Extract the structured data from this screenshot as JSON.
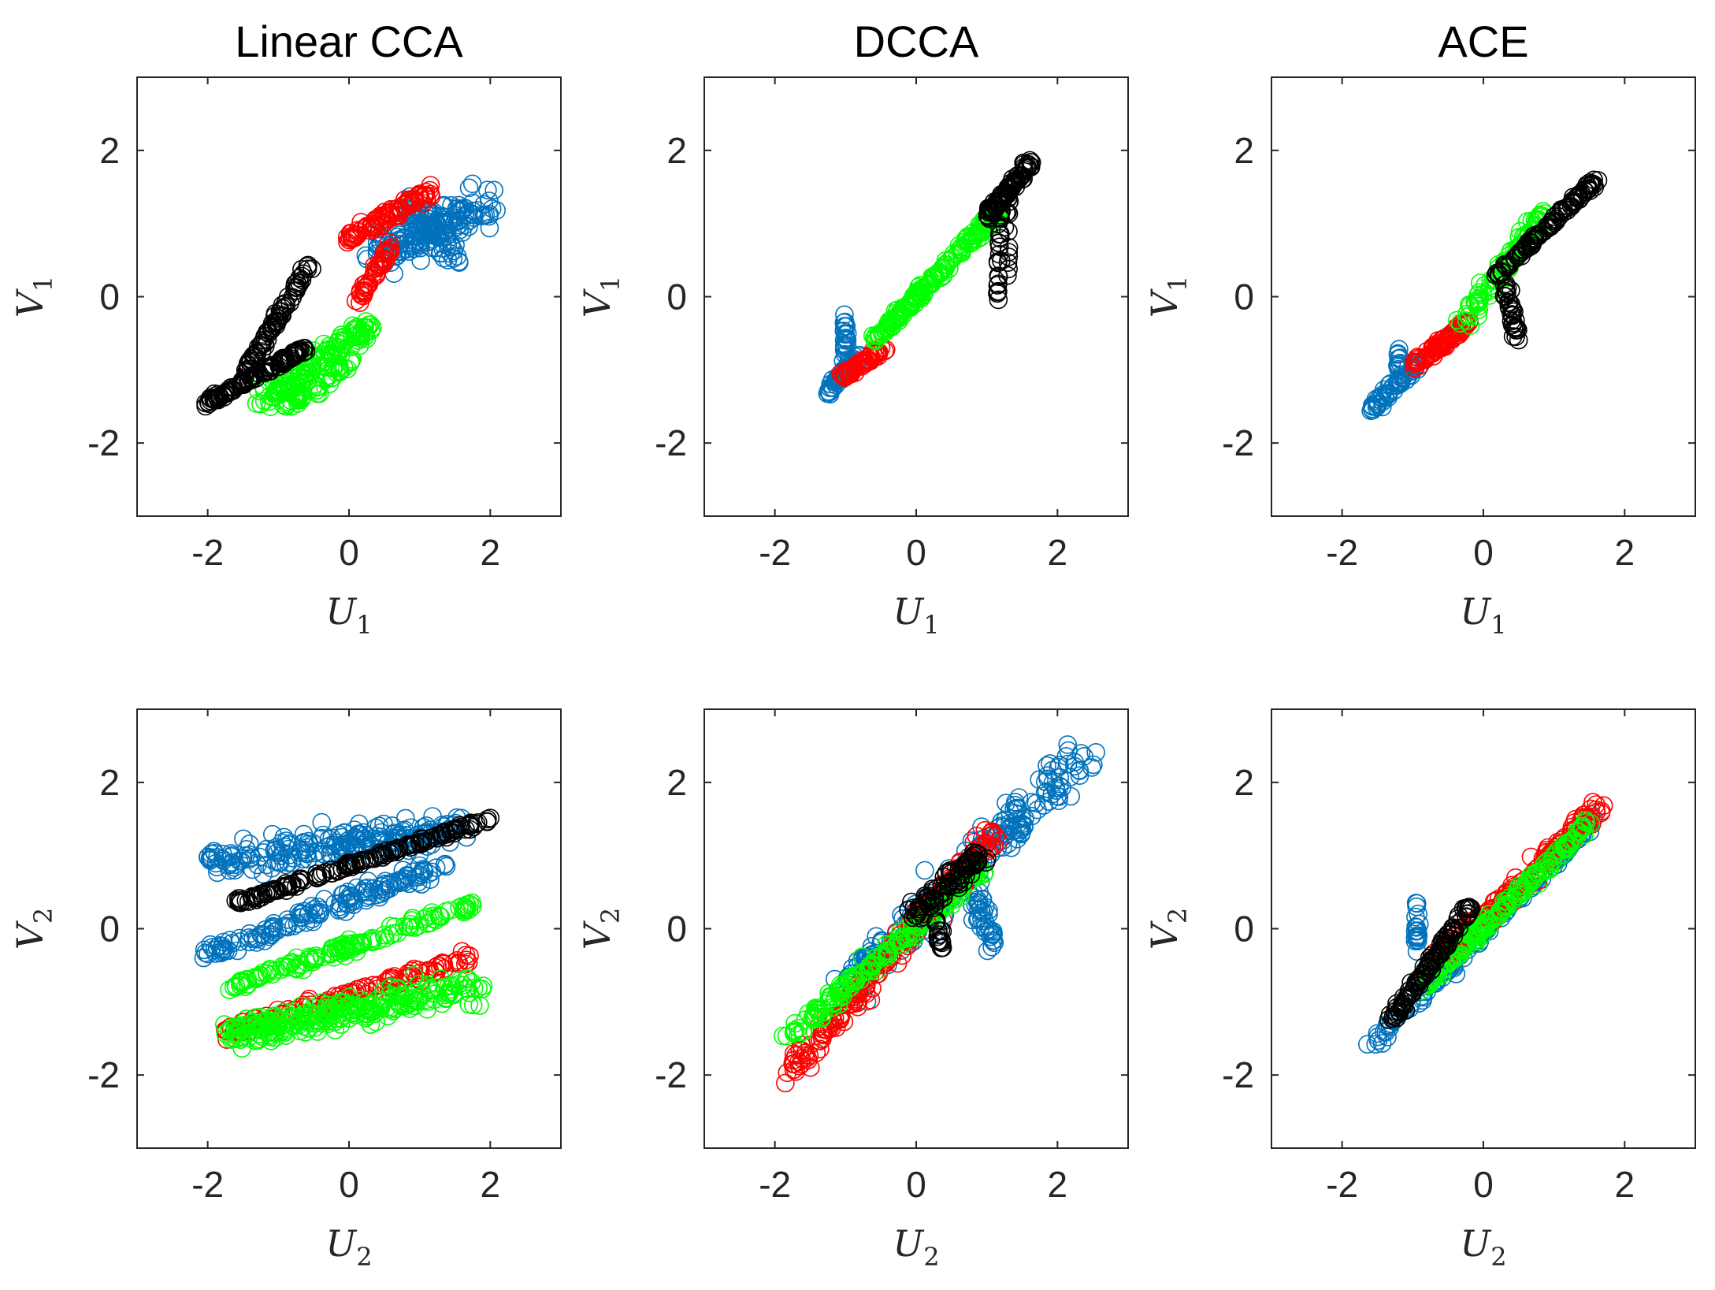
{
  "figure": {
    "column_titles": [
      "Linear CCA",
      "DCCA",
      "ACE"
    ],
    "row_axes": [
      {
        "xlabel": "U",
        "xsub": "1",
        "ylabel": "V",
        "ysub": "1"
      },
      {
        "xlabel": "U",
        "xsub": "2",
        "ylabel": "V",
        "ysub": "2"
      }
    ],
    "xticks": [
      -2,
      0,
      2
    ],
    "yticks": [
      -2,
      0,
      2
    ],
    "xlim": [
      -3,
      3
    ],
    "ylim": [
      -3,
      3
    ]
  },
  "series_colors": {
    "blue": "#0072BD",
    "red": "#FF0000",
    "green": "#00FF00",
    "black": "#000000"
  },
  "chart_data": [
    {
      "type": "scatter",
      "title": "Linear CCA",
      "xlabel": "U_1",
      "ylabel": "V_1",
      "xlim": [
        -3,
        3
      ],
      "ylim": [
        -3,
        3
      ],
      "series": [
        {
          "name": "blue",
          "color": "blue",
          "segments": [
            {
              "from": [
                0.4,
                0.6
              ],
              "to": [
                2.0,
                1.3
              ],
              "spread": 0.28,
              "n": 150
            },
            {
              "from": [
                0.8,
                1.3
              ],
              "to": [
                1.5,
                0.5
              ],
              "spread": 0.18,
              "n": 60
            }
          ]
        },
        {
          "name": "red",
          "color": "red",
          "segments": [
            {
              "from": [
                0.0,
                0.8
              ],
              "to": [
                1.2,
                1.45
              ],
              "spread": 0.1,
              "n": 90
            },
            {
              "from": [
                0.1,
                -0.1
              ],
              "to": [
                0.6,
                0.7
              ],
              "spread": 0.05,
              "n": 50
            }
          ]
        },
        {
          "name": "green",
          "color": "green",
          "segments": [
            {
              "from": [
                -1.2,
                -1.4
              ],
              "to": [
                0.3,
                -0.4
              ],
              "spread": 0.15,
              "n": 130
            },
            {
              "from": [
                -0.9,
                -1.5
              ],
              "to": [
                0.0,
                -0.9
              ],
              "spread": 0.1,
              "n": 50
            }
          ]
        },
        {
          "name": "black",
          "color": "black",
          "segments": [
            {
              "from": [
                -2.0,
                -1.45
              ],
              "to": [
                -0.6,
                -0.7
              ],
              "spread": 0.06,
              "n": 110
            },
            {
              "from": [
                -1.5,
                -1.1
              ],
              "to": [
                -0.55,
                0.45
              ],
              "spread": 0.05,
              "n": 80
            }
          ]
        }
      ]
    },
    {
      "type": "scatter",
      "title": "DCCA",
      "xlabel": "U_1",
      "ylabel": "V_1",
      "xlim": [
        -3,
        3
      ],
      "ylim": [
        -3,
        3
      ],
      "series": [
        {
          "name": "blue",
          "color": "blue",
          "segments": [
            {
              "from": [
                -1.3,
                -1.35
              ],
              "to": [
                -0.8,
                -0.8
              ],
              "spread": 0.06,
              "n": 45
            },
            {
              "from": [
                -1.0,
                -1.0
              ],
              "to": [
                -1.0,
                -0.2
              ],
              "spread": 0.04,
              "n": 25
            }
          ]
        },
        {
          "name": "red",
          "color": "red",
          "segments": [
            {
              "from": [
                -1.05,
                -1.1
              ],
              "to": [
                -0.45,
                -0.7
              ],
              "spread": 0.06,
              "n": 60
            }
          ]
        },
        {
          "name": "green",
          "color": "green",
          "segments": [
            {
              "from": [
                -0.6,
                -0.6
              ],
              "to": [
                1.2,
                1.2
              ],
              "spread": 0.07,
              "n": 170
            }
          ]
        },
        {
          "name": "black",
          "color": "black",
          "segments": [
            {
              "from": [
                1.0,
                1.1
              ],
              "to": [
                1.65,
                1.85
              ],
              "spread": 0.07,
              "n": 80
            },
            {
              "from": [
                1.2,
                1.4
              ],
              "to": [
                1.15,
                -0.15
              ],
              "spread": 0.03,
              "n": 28
            },
            {
              "from": [
                1.3,
                1.4
              ],
              "to": [
                1.3,
                0.2
              ],
              "spread": 0.03,
              "n": 15
            }
          ]
        }
      ]
    },
    {
      "type": "scatter",
      "title": "ACE",
      "xlabel": "U_1",
      "ylabel": "V_1",
      "xlim": [
        -3,
        3
      ],
      "ylim": [
        -3,
        3
      ],
      "series": [
        {
          "name": "blue",
          "color": "blue",
          "segments": [
            {
              "from": [
                -1.6,
                -1.55
              ],
              "to": [
                -0.9,
                -0.9
              ],
              "spread": 0.06,
              "n": 55
            },
            {
              "from": [
                -1.2,
                -1.0
              ],
              "to": [
                -1.2,
                -0.7
              ],
              "spread": 0.03,
              "n": 12
            }
          ]
        },
        {
          "name": "red",
          "color": "red",
          "segments": [
            {
              "from": [
                -1.0,
                -0.95
              ],
              "to": [
                -0.2,
                -0.35
              ],
              "spread": 0.08,
              "n": 80
            }
          ]
        },
        {
          "name": "green",
          "color": "green",
          "segments": [
            {
              "from": [
                -0.3,
                -0.35
              ],
              "to": [
                0.9,
                1.2
              ],
              "spread": 0.1,
              "n": 90
            }
          ]
        },
        {
          "name": "black",
          "color": "black",
          "segments": [
            {
              "from": [
                0.2,
                0.3
              ],
              "to": [
                1.6,
                1.6
              ],
              "spread": 0.05,
              "n": 110
            },
            {
              "from": [
                0.3,
                0.2
              ],
              "to": [
                0.5,
                -0.65
              ],
              "spread": 0.06,
              "n": 35
            }
          ]
        }
      ]
    },
    {
      "type": "scatter",
      "title": "",
      "xlabel": "U_2",
      "ylabel": "V_2",
      "xlim": [
        -3,
        3
      ],
      "ylim": [
        -3,
        3
      ],
      "series": [
        {
          "name": "blue",
          "color": "blue",
          "segments": [
            {
              "from": [
                -2.0,
                0.9
              ],
              "to": [
                1.5,
                1.35
              ],
              "spread": 0.22,
              "n": 220
            },
            {
              "from": [
                -2.0,
                -0.35
              ],
              "to": [
                1.4,
                0.9
              ],
              "spread": 0.12,
              "n": 150
            }
          ]
        },
        {
          "name": "black",
          "color": "black",
          "segments": [
            {
              "from": [
                -1.6,
                0.35
              ],
              "to": [
                2.0,
                1.5
              ],
              "spread": 0.05,
              "n": 150
            }
          ]
        },
        {
          "name": "red",
          "color": "red",
          "segments": [
            {
              "from": [
                -1.8,
                -1.45
              ],
              "to": [
                1.7,
                -0.4
              ],
              "spread": 0.1,
              "n": 120
            }
          ]
        },
        {
          "name": "green",
          "color": "green",
          "segments": [
            {
              "from": [
                -1.7,
                -0.8
              ],
              "to": [
                1.8,
                0.35
              ],
              "spread": 0.1,
              "n": 130
            },
            {
              "from": [
                -1.7,
                -1.45
              ],
              "to": [
                1.8,
                -0.8
              ],
              "spread": 0.22,
              "n": 260
            }
          ]
        }
      ]
    },
    {
      "type": "scatter",
      "title": "",
      "xlabel": "U_2",
      "ylabel": "V_2",
      "xlim": [
        -3,
        3
      ],
      "ylim": [
        -3,
        3
      ],
      "series": [
        {
          "name": "blue",
          "color": "blue",
          "segments": [
            {
              "from": [
                -1.0,
                -0.8
              ],
              "to": [
                2.4,
                2.4
              ],
              "spread": 0.28,
              "n": 220
            },
            {
              "from": [
                0.8,
                0.5
              ],
              "to": [
                1.1,
                -0.2
              ],
              "spread": 0.15,
              "n": 40
            }
          ]
        },
        {
          "name": "red",
          "color": "red",
          "segments": [
            {
              "from": [
                -1.8,
                -1.95
              ],
              "to": [
                1.1,
                1.3
              ],
              "spread": 0.16,
              "n": 220
            }
          ]
        },
        {
          "name": "green",
          "color": "green",
          "segments": [
            {
              "from": [
                -1.8,
                -1.5
              ],
              "to": [
                0.9,
                0.8
              ],
              "spread": 0.1,
              "n": 170
            }
          ]
        },
        {
          "name": "black",
          "color": "black",
          "segments": [
            {
              "from": [
                0.0,
                0.2
              ],
              "to": [
                0.9,
                1.0
              ],
              "spread": 0.15,
              "n": 90
            },
            {
              "from": [
                0.3,
                0.1
              ],
              "to": [
                0.35,
                -0.3
              ],
              "spread": 0.05,
              "n": 18
            }
          ]
        }
      ]
    },
    {
      "type": "scatter",
      "title": "",
      "xlabel": "U_2",
      "ylabel": "V_2",
      "xlim": [
        -3,
        3
      ],
      "ylim": [
        -3,
        3
      ],
      "series": [
        {
          "name": "blue",
          "color": "blue",
          "segments": [
            {
              "from": [
                -1.6,
                -1.6
              ],
              "to": [
                1.6,
                1.5
              ],
              "spread": 0.08,
              "n": 130
            },
            {
              "from": [
                -0.95,
                -0.3
              ],
              "to": [
                -0.95,
                0.4
              ],
              "spread": 0.04,
              "n": 20
            }
          ]
        },
        {
          "name": "red",
          "color": "red",
          "segments": [
            {
              "from": [
                -0.6,
                -0.4
              ],
              "to": [
                1.7,
                1.7
              ],
              "spread": 0.12,
              "n": 170
            }
          ]
        },
        {
          "name": "green",
          "color": "green",
          "segments": [
            {
              "from": [
                -0.8,
                -0.75
              ],
              "to": [
                1.5,
                1.45
              ],
              "spread": 0.08,
              "n": 150
            }
          ]
        },
        {
          "name": "black",
          "color": "black",
          "segments": [
            {
              "from": [
                -1.3,
                -1.25
              ],
              "to": [
                -0.2,
                0.3
              ],
              "spread": 0.07,
              "n": 110
            }
          ]
        }
      ]
    }
  ]
}
